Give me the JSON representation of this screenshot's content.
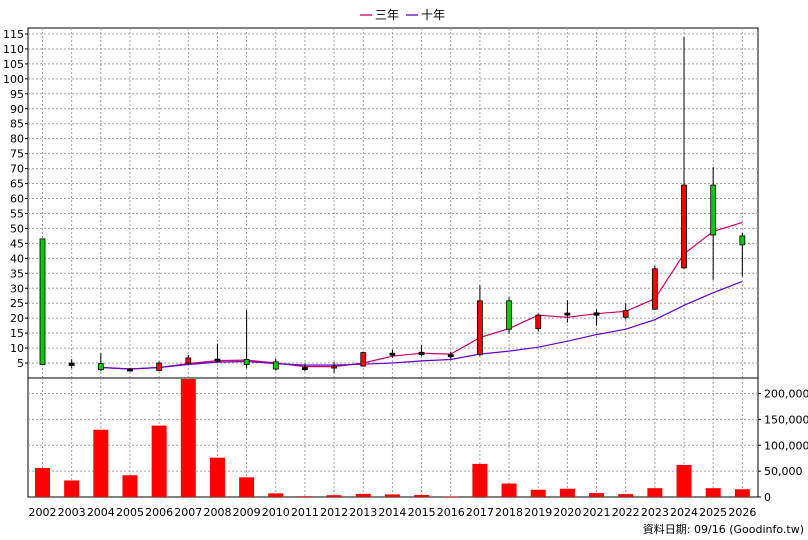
{
  "legend": [
    {
      "name": "三年",
      "color": "#cc0066"
    },
    {
      "name": "十年",
      "color": "#6600cc"
    }
  ],
  "source_note": "資料日期: 09/16 (Goodinfo.tw)",
  "chart_data": [
    {
      "type": "candlestick",
      "categories": [
        "2002",
        "2003",
        "2004",
        "2005",
        "2006",
        "2007",
        "2008",
        "2009",
        "2010",
        "2011",
        "2012",
        "2013",
        "2014",
        "2015",
        "2016",
        "2017",
        "2018",
        "2019",
        "2020",
        "2021",
        "2022",
        "2023",
        "2024",
        "2025",
        "2026"
      ],
      "y_ticks": [
        5,
        10,
        15,
        20,
        25,
        30,
        35,
        40,
        45,
        50,
        55,
        60,
        65,
        70,
        75,
        80,
        85,
        90,
        95,
        100,
        105,
        110,
        115
      ],
      "ylim": [
        0,
        117
      ],
      "candles": [
        {
          "open": 46.5,
          "close": 4.5,
          "high": 46.5,
          "low": 4.5,
          "color": "green"
        },
        {
          "open": 5.0,
          "close": 4.2,
          "high": 6.3,
          "low": 3.3,
          "color": "black"
        },
        {
          "open": 4.8,
          "close": 2.8,
          "high": 8.3,
          "low": 2.2,
          "color": "green"
        },
        {
          "open": 3.0,
          "close": 2.7,
          "high": 3.4,
          "low": 2.2,
          "color": "black"
        },
        {
          "open": 2.5,
          "close": 5.0,
          "high": 5.5,
          "low": 2.2,
          "color": "red"
        },
        {
          "open": 5.0,
          "close": 6.7,
          "high": 7.7,
          "low": 4.7,
          "color": "red"
        },
        {
          "open": 6.0,
          "close": 6.3,
          "high": 11.5,
          "low": 5.3,
          "color": "black"
        },
        {
          "open": 6.2,
          "close": 4.5,
          "high": 22.7,
          "low": 3.3,
          "color": "green"
        },
        {
          "open": 5.4,
          "close": 3.0,
          "high": 6.5,
          "low": 2.5,
          "color": "green"
        },
        {
          "open": 3.2,
          "close": 3.5,
          "high": 4.8,
          "low": 2.2,
          "color": "black"
        },
        {
          "open": 3.5,
          "close": 4.0,
          "high": 5.3,
          "low": 1.7,
          "color": "red"
        },
        {
          "open": 4.0,
          "close": 8.5,
          "high": 8.8,
          "low": 3.8,
          "color": "red"
        },
        {
          "open": 8.0,
          "close": 8.3,
          "high": 9.5,
          "low": 6.8,
          "color": "black"
        },
        {
          "open": 7.8,
          "close": 8.6,
          "high": 11.0,
          "low": 7.3,
          "color": "black"
        },
        {
          "open": 7.2,
          "close": 7.8,
          "high": 8.8,
          "low": 6.4,
          "color": "black"
        },
        {
          "open": 7.8,
          "close": 25.8,
          "high": 31.0,
          "low": 7.3,
          "color": "red"
        },
        {
          "open": 25.8,
          "close": 16.3,
          "high": 27.0,
          "low": 14.8,
          "color": "green"
        },
        {
          "open": 16.5,
          "close": 21.0,
          "high": 21.5,
          "low": 15.5,
          "color": "red"
        },
        {
          "open": 21.5,
          "close": 21.7,
          "high": 26.0,
          "low": 18.5,
          "color": "black"
        },
        {
          "open": 21.0,
          "close": 21.8,
          "high": 23.0,
          "low": 17.5,
          "color": "black"
        },
        {
          "open": 20.3,
          "close": 22.5,
          "high": 25.0,
          "low": 19.5,
          "color": "red"
        },
        {
          "open": 23.0,
          "close": 36.5,
          "high": 37.5,
          "low": 22.8,
          "color": "red"
        },
        {
          "open": 36.8,
          "close": 64.5,
          "high": 114.0,
          "low": 36.5,
          "color": "red"
        },
        {
          "open": 64.5,
          "close": 47.8,
          "high": 70.5,
          "low": 32.8,
          "color": "green"
        },
        {
          "open": 47.5,
          "close": 44.5,
          "high": 48.5,
          "low": 34.0,
          "color": "green"
        }
      ],
      "lines": [
        {
          "name": "三年",
          "values": [
            null,
            null,
            3.5,
            3.0,
            3.5,
            4.8,
            5.8,
            6.0,
            5.0,
            3.8,
            3.8,
            5.0,
            7.3,
            8.3,
            8.0,
            13.5,
            16.5,
            21.0,
            20.3,
            21.5,
            22.3,
            26.5,
            41.5,
            49.0,
            52.0
          ]
        },
        {
          "name": "十年",
          "values": [
            null,
            null,
            3.5,
            3.0,
            3.5,
            4.5,
            5.3,
            5.5,
            4.8,
            4.3,
            4.3,
            4.6,
            5.0,
            5.7,
            6.2,
            8.0,
            9.0,
            10.3,
            12.3,
            14.5,
            16.3,
            19.5,
            24.3,
            28.5,
            32.3
          ]
        }
      ]
    },
    {
      "type": "bar",
      "categories": [
        "2002",
        "2003",
        "2004",
        "2005",
        "2006",
        "2007",
        "2008",
        "2009",
        "2010",
        "2011",
        "2012",
        "2013",
        "2014",
        "2015",
        "2016",
        "2017",
        "2018",
        "2019",
        "2020",
        "2021",
        "2022",
        "2023",
        "2024",
        "2025",
        "2026"
      ],
      "values": [
        56000,
        32000,
        130000,
        42000,
        138000,
        228000,
        76000,
        38000,
        7000,
        1500,
        3500,
        6000,
        5000,
        4000,
        1200,
        64000,
        26000,
        14000,
        16000,
        7500,
        5500,
        17000,
        62000,
        17000,
        15000
      ],
      "y_ticks": [
        0,
        50000,
        100000,
        150000,
        200000
      ],
      "y_tick_labels": [
        "0",
        "50,000",
        "100,000",
        "150,000",
        "200,000"
      ],
      "ylim": [
        0,
        230000
      ],
      "bar_color": "#ff0000"
    }
  ]
}
